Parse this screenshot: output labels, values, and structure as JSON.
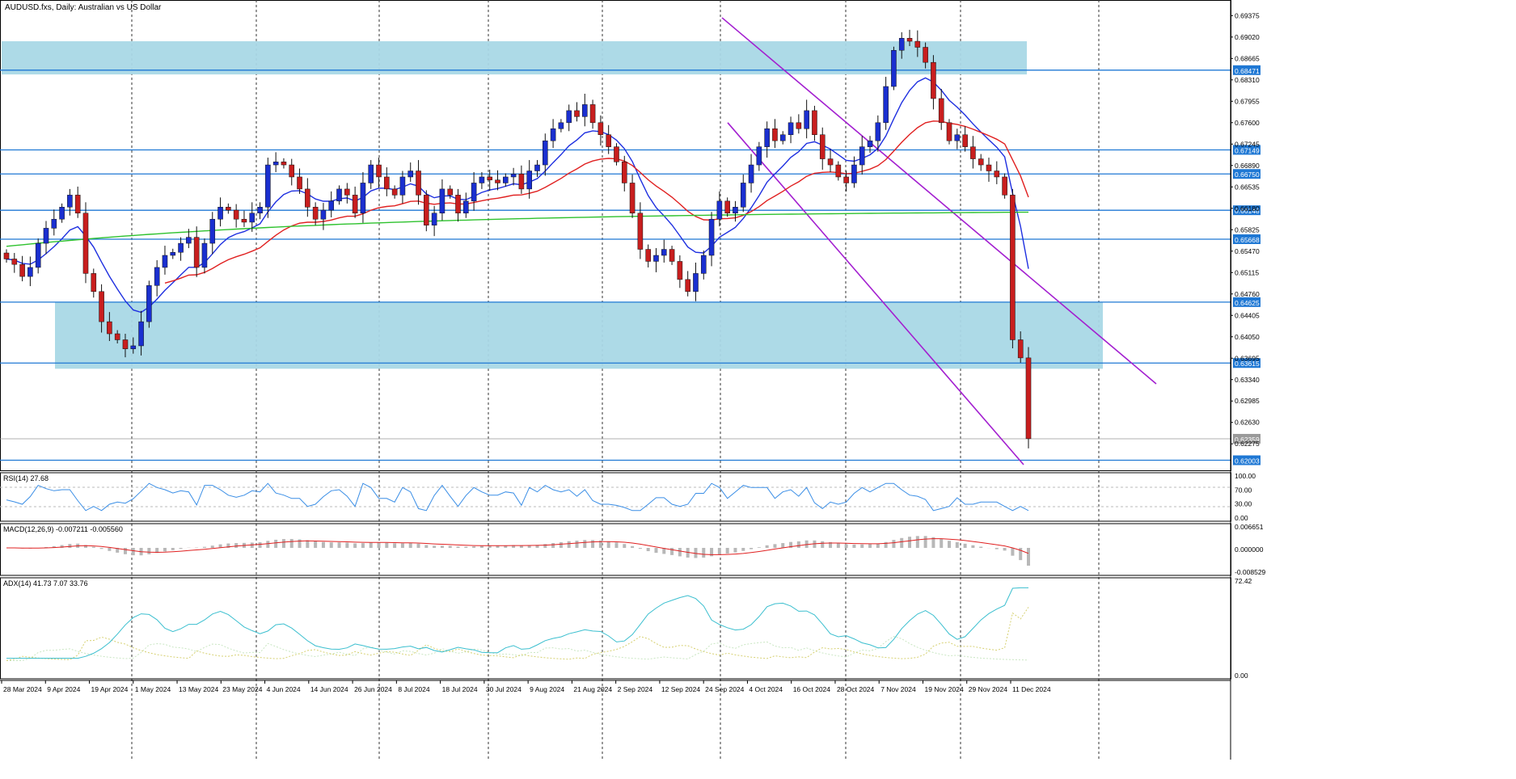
{
  "colors": {
    "candle_up": "#1a2fd0",
    "candle_down": "#c81e1e",
    "ma_blue": "#1e2fe0",
    "ma_red": "#e02020",
    "ma_green": "#2ec22e",
    "hline": "#1f78d4",
    "zone": "#a9d8e6",
    "channel": "#a31fd0",
    "price_label_bg": "#1f78d4",
    "rsi": "#3a8ee6",
    "macd_signal": "#e02020",
    "macd_hist": "#b8b8b8",
    "adx_main": "#3bbfcf",
    "adx_plus": "#c9e6c2",
    "adx_minus": "#d6d070"
  },
  "header": {
    "title": "AUDUSD.fxs, Daily:  Australian vs US Dollar"
  },
  "main_panel": {
    "price_ticks": [
      "0.69375",
      "0.69020",
      "0.68665",
      "0.68310",
      "0.67955",
      "0.67600",
      "0.67245",
      "0.66890",
      "0.66535",
      "0.66180",
      "0.65825",
      "0.65470",
      "0.65115",
      "0.64760",
      "0.64405",
      "0.64050",
      "0.63695",
      "0.63340",
      "0.62985",
      "0.62630",
      "0.62275"
    ],
    "price_range": [
      0.6197,
      0.695
    ],
    "levels": [
      {
        "value": 0.68471,
        "label": "0.68471"
      },
      {
        "value": 0.67149,
        "label": "0.67149"
      },
      {
        "value": 0.6675,
        "label": "0.66750"
      },
      {
        "value": 0.66148,
        "label": "0.66148"
      },
      {
        "value": 0.65668,
        "label": "0.65668"
      },
      {
        "value": 0.64625,
        "label": "0.64625"
      },
      {
        "value": 0.63615,
        "label": "0.63615"
      },
      {
        "value": 0.62003,
        "label": "0.62003"
      }
    ],
    "current_price": {
      "value": 0.62359,
      "label": "0.62359"
    },
    "zones": [
      {
        "from_date_index": 0,
        "to_date_index": 67,
        "high": 0.6895,
        "low": 0.684
      },
      {
        "from_date_index": 8,
        "to_date_index": 135,
        "high": 0.6462,
        "low": 0.6352
      }
    ]
  },
  "x_axis": {
    "date_labels": [
      "28 Mar 2024",
      "9 Apr 2024",
      "19 Apr 2024",
      "1 May 2024",
      "13 May 2024",
      "23 May 2024",
      "4 Jun 2024",
      "14 Jun 2024",
      "26 Jun 2024",
      "8 Jul 2024",
      "18 Jul 2024",
      "30 Jul 2024",
      "9 Aug 2024",
      "21 Aug 2024",
      "2 Sep 2024",
      "12 Sep 2024",
      "24 Sep 2024",
      "4 Oct 2024",
      "16 Oct 2024",
      "28 Oct 2024",
      "7 Nov 2024",
      "19 Nov 2024",
      "29 Nov 2024",
      "11 Dec 2024"
    ]
  },
  "rsi_panel": {
    "title": "RSI(14) 27.68",
    "ticks": [
      "100.00",
      "70.00",
      "30.00",
      "0.00"
    ]
  },
  "macd_panel": {
    "title": "MACD(12,26,9) -0.007211 -0.005560",
    "ticks": [
      "0.006651",
      "0.000000",
      "-0.008529"
    ]
  },
  "adx_panel": {
    "title": "ADX(14) 41.73 7.07 33.76",
    "ticks": [
      "72.42",
      "0.00"
    ]
  },
  "chart_data": {
    "type": "candlestick",
    "title": "AUDUSD.fxs, Daily:  Australian vs US Dollar",
    "timeframe": "Daily",
    "series_count": 130,
    "closes": [
      0.6534,
      0.6525,
      0.6505,
      0.652,
      0.656,
      0.6585,
      0.66,
      0.662,
      0.664,
      0.661,
      0.651,
      0.648,
      0.643,
      0.641,
      0.64,
      0.6385,
      0.639,
      0.643,
      0.649,
      0.652,
      0.654,
      0.6545,
      0.656,
      0.657,
      0.652,
      0.656,
      0.66,
      0.662,
      0.6615,
      0.66,
      0.6595,
      0.661,
      0.662,
      0.669,
      0.6695,
      0.669,
      0.667,
      0.665,
      0.662,
      0.66,
      0.6615,
      0.663,
      0.665,
      0.664,
      0.661,
      0.666,
      0.669,
      0.667,
      0.665,
      0.664,
      0.667,
      0.668,
      0.664,
      0.659,
      0.661,
      0.665,
      0.664,
      0.661,
      0.663,
      0.666,
      0.667,
      0.6665,
      0.666,
      0.667,
      0.6675,
      0.665,
      0.668,
      0.669,
      0.673,
      0.675,
      0.676,
      0.678,
      0.677,
      0.679,
      0.676,
      0.674,
      0.672,
      0.6695,
      0.666,
      0.661,
      0.655,
      0.653,
      0.654,
      0.655,
      0.653,
      0.65,
      0.648,
      0.651,
      0.654,
      0.66,
      0.663,
      0.661,
      0.662,
      0.666,
      0.669,
      0.672,
      0.675,
      0.673,
      0.674,
      0.676,
      0.675,
      0.678,
      0.674,
      0.67,
      0.669,
      0.667,
      0.666,
      0.669,
      0.672,
      0.673,
      0.676,
      0.682,
      0.688,
      0.69,
      0.6895,
      0.6885,
      0.686,
      0.68,
      0.676,
      0.673,
      0.674,
      0.672,
      0.67,
      0.669,
      0.668,
      0.667,
      0.664,
      0.64,
      0.637,
      0.6236
    ],
    "ma_fast_desc": "blue 20-period moving average",
    "ma_mid_desc": "red 50-period moving average",
    "ma_slow_desc": "green 200-period moving average",
    "rsi_last": 27.68,
    "macd_last": [
      -0.007211,
      -0.00556
    ],
    "adx_last": [
      41.73,
      7.07,
      33.76
    ]
  }
}
